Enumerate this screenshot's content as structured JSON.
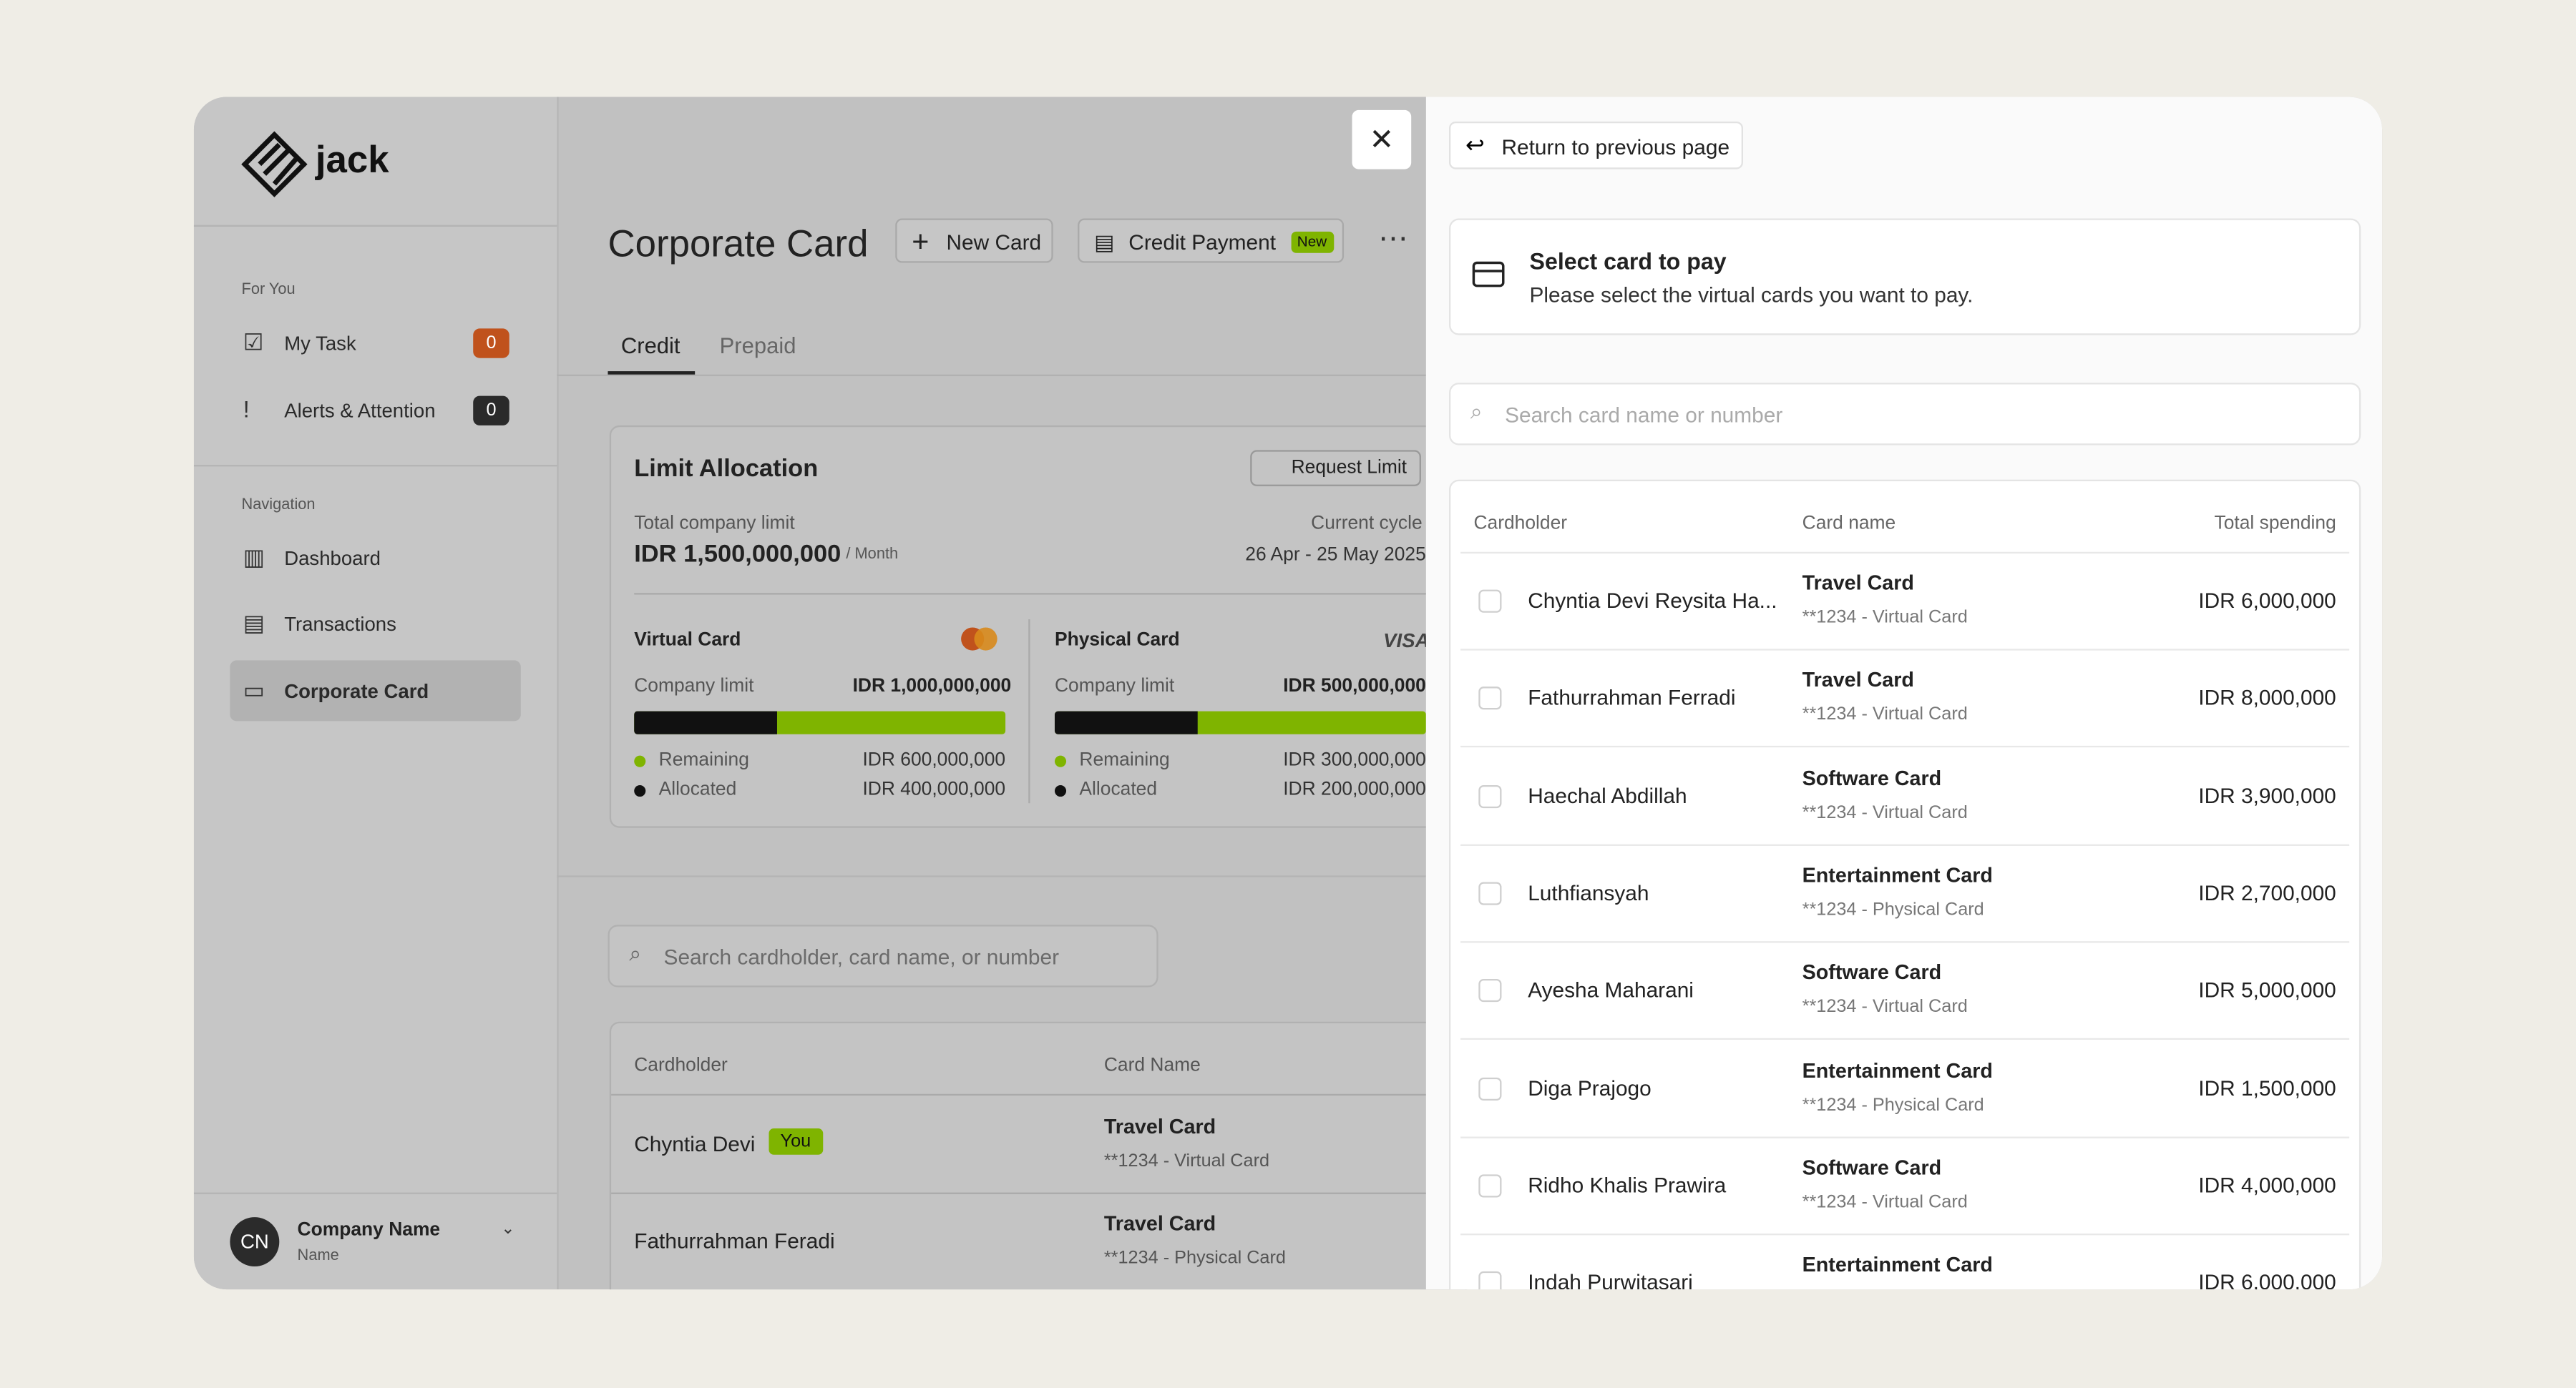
{
  "sidebar": {
    "brand": "jack",
    "sections": [
      {
        "title": "For You",
        "items": [
          {
            "label": "My Task",
            "badge": 0
          },
          {
            "label": "Alerts & Attention",
            "badge": 0
          }
        ]
      },
      {
        "title": "Navigation",
        "items": [
          {
            "label": "Dashboard"
          },
          {
            "label": "Transactions"
          },
          {
            "label": "Corporate Card"
          }
        ]
      }
    ],
    "footer": {
      "initials": "CN",
      "company": "Company Name",
      "role": "Name"
    }
  },
  "main": {
    "title": "Corporate Card",
    "buttons": [
      "New Card",
      "Credit Payment"
    ],
    "new_badge": "New",
    "tabs": [
      "Credit",
      "Prepaid"
    ],
    "limit": {
      "title": "Limit Allocation",
      "request": "Request Limit",
      "total_label": "Total company limit",
      "total": "IDR 1,500,000,000",
      "per": "/ Month",
      "cycle_label": "Current cycle",
      "cycle": "26 Apr - 25 May 2025",
      "cards": [
        {
          "name": "Virtual Card",
          "limit_label": "Company limit",
          "limit": "IDR 1,000,000,000",
          "remaining_label": "Remaining",
          "remaining": "IDR 600,000,000",
          "allocated_label": "Allocated",
          "allocated": "IDR 400,000,000"
        },
        {
          "name": "Physical Card",
          "brand": "VISA",
          "limit_label": "Company limit",
          "limit": "IDR 500,000,000",
          "remaining_label": "Remaining",
          "remaining": "IDR 300,000,000",
          "allocated_label": "Allocated",
          "allocated": "IDR 200,000,000"
        }
      ]
    },
    "search": "Search cardholder, card name, or number",
    "table": {
      "headers": [
        "Cardholder",
        "Card Name"
      ],
      "you": "You",
      "rows": [
        [
          "Chyntia Devi",
          "Travel Card",
          "**1234 - Virtual Card"
        ],
        [
          "Fathurrahman Feradi",
          "Travel Card",
          "**1234 - Physical Card"
        ]
      ]
    }
  },
  "panel": {
    "back": "Return to previous page",
    "heading": "Select card to pay",
    "subheading": "Please select the virtual cards you want to pay.",
    "search": "Search card name or number",
    "headers": [
      "Cardholder",
      "Card name",
      "Total spending"
    ],
    "rows": [
      [
        "Chyntia Devi Reysita Ha...",
        "Travel Card",
        "**1234 - Virtual Card",
        "IDR 6,000,000"
      ],
      [
        "Fathurrahman Ferradi",
        "Travel Card",
        "**1234 - Virtual Card",
        "IDR 8,000,000"
      ],
      [
        "Haechal Abdillah",
        "Software Card",
        "**1234 - Virtual Card",
        "IDR 3,900,000"
      ],
      [
        "Luthfiansyah",
        "Entertainment Card",
        "**1234 - Physical Card",
        "IDR 2,700,000"
      ],
      [
        "Ayesha Maharani",
        "Software Card",
        "**1234 - Virtual Card",
        "IDR 5,000,000"
      ],
      [
        "Diga Prajogo",
        "Entertainment Card",
        "**1234 - Physical Card",
        "IDR 1,500,000"
      ],
      [
        "Ridho Khalis Prawira",
        "Software Card",
        "**1234 - Virtual Card",
        "IDR 4,000,000"
      ],
      [
        "Indah Purwitasari",
        "Entertainment Card",
        "IDR 6,000,000"
      ]
    ]
  }
}
